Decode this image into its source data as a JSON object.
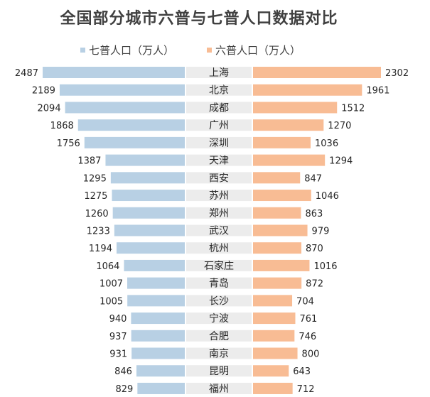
{
  "chart_data": {
    "type": "bar",
    "title": "全国部分城市六普与七普人口数据对比",
    "categories": [
      "上海",
      "北京",
      "成都",
      "广州",
      "深圳",
      "天津",
      "西安",
      "苏州",
      "郑州",
      "武汉",
      "杭州",
      "石家庄",
      "青岛",
      "长沙",
      "宁波",
      "合肥",
      "南京",
      "昆明",
      "福州"
    ],
    "series": [
      {
        "name": "七普人口（万人）",
        "color": "#b8d0e4",
        "side": "left",
        "values": [
          2487,
          2189,
          2094,
          1868,
          1756,
          1387,
          1295,
          1275,
          1260,
          1233,
          1194,
          1064,
          1007,
          1005,
          940,
          937,
          931,
          846,
          829
        ]
      },
      {
        "name": "六普人口（万人）",
        "color": "#f8bc94",
        "side": "right",
        "values": [
          2302,
          1961,
          1512,
          1270,
          1036,
          1294,
          847,
          1046,
          863,
          979,
          870,
          1016,
          872,
          704,
          761,
          746,
          800,
          643,
          712
        ]
      }
    ],
    "category_band_color": "#ececec",
    "legend_position": "top",
    "grid": false
  }
}
